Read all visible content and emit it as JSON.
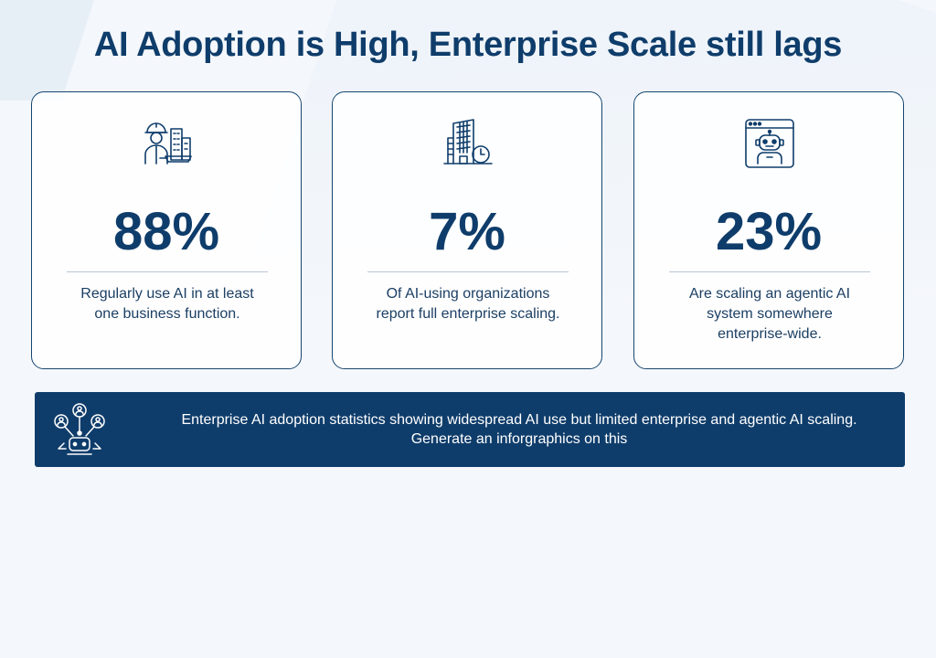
{
  "title": "AI Adoption is High, Enterprise Scale still lags",
  "colors": {
    "navy": "#0f3d6b",
    "text": "#1b3f63",
    "card_border": "#16466f",
    "background": "#f4f7fb"
  },
  "cards": [
    {
      "icon": "engineer-with-building-icon",
      "value": "88%",
      "description": "Regularly use AI in at least one business function."
    },
    {
      "icon": "office-building-clock-icon",
      "value": "7%",
      "description": "Of AI-using organizations report full enterprise scaling."
    },
    {
      "icon": "robot-on-screen-icon",
      "value": "23%",
      "description": "Are scaling an agentic AI system somewhere enterprise-wide."
    }
  ],
  "banner": {
    "icon": "ai-network-people-icon",
    "text": "Enterprise AI adoption statistics showing widespread AI use but limited enterprise and agentic AI scaling.  Generate an inforgraphics on this"
  }
}
